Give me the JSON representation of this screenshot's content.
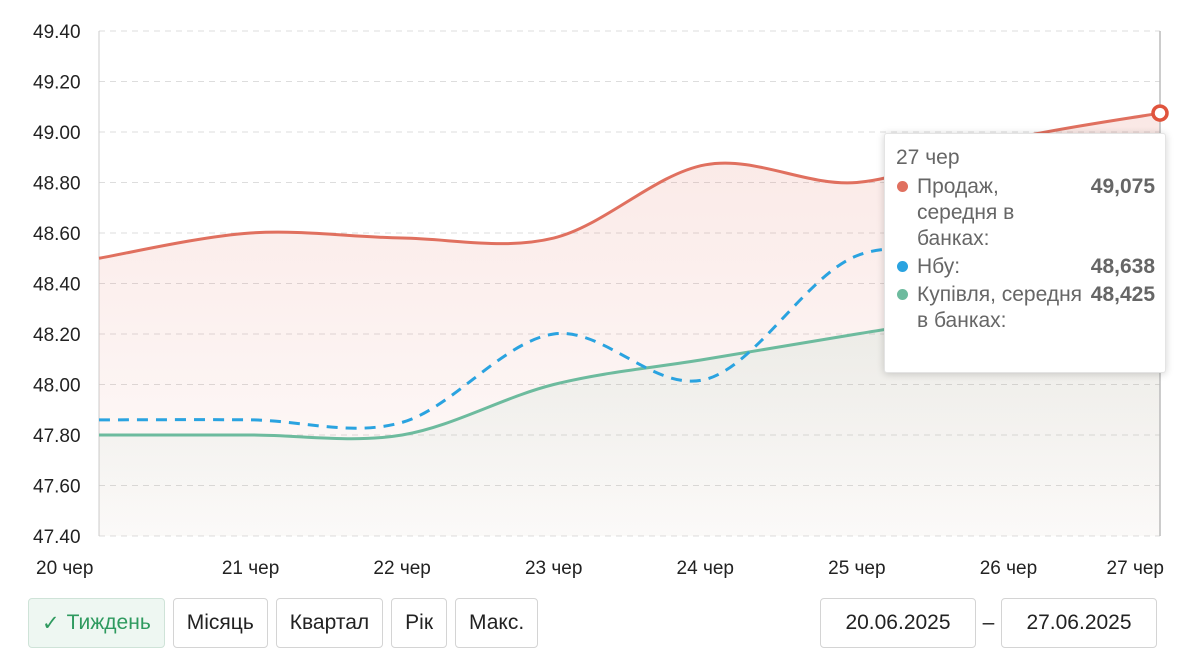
{
  "chart_data": {
    "type": "line",
    "x": [
      "20 чер",
      "21 чер",
      "22 чер",
      "23 чер",
      "24 чер",
      "25 чер",
      "26 чер",
      "27 чер"
    ],
    "ylim": [
      47.4,
      49.4
    ],
    "yticks": [
      "49.40",
      "49.20",
      "49.00",
      "48.80",
      "48.60",
      "48.40",
      "48.20",
      "48.00",
      "47.80",
      "47.60",
      "47.40"
    ],
    "grid": true,
    "series": [
      {
        "name": "Продаж, середня в банках:",
        "color": "#e0705f",
        "style": "solid",
        "values": [
          48.5,
          48.6,
          48.58,
          48.58,
          48.87,
          48.8,
          48.97,
          49.075
        ]
      },
      {
        "name": "Нбу:",
        "color": "#2aa3e0",
        "style": "dashed",
        "values": [
          47.86,
          47.86,
          47.85,
          48.2,
          48.02,
          48.51,
          48.49,
          48.638
        ]
      },
      {
        "name": "Купівля, середня в банках:",
        "color": "#6dbb9e",
        "style": "solid",
        "values": [
          47.8,
          47.8,
          47.8,
          48.0,
          48.1,
          48.2,
          48.3,
          48.425
        ]
      }
    ]
  },
  "tooltip": {
    "date": "27 чер",
    "rows": [
      {
        "label": "Продаж, середня в банках:",
        "value": "49,075",
        "color": "#e0705f"
      },
      {
        "label": "Нбу:",
        "value": "48,638",
        "color": "#2aa3e0"
      },
      {
        "label": "Купівля, середня в банках:",
        "value": "48,425",
        "color": "#6dbb9e"
      }
    ]
  },
  "period_buttons": {
    "week": "Тиждень",
    "month": "Місяць",
    "quarter": "Квартал",
    "year": "Рік",
    "max": "Макс."
  },
  "date_range": {
    "from": "20.06.2025",
    "separator": "–",
    "to": "27.06.2025"
  }
}
